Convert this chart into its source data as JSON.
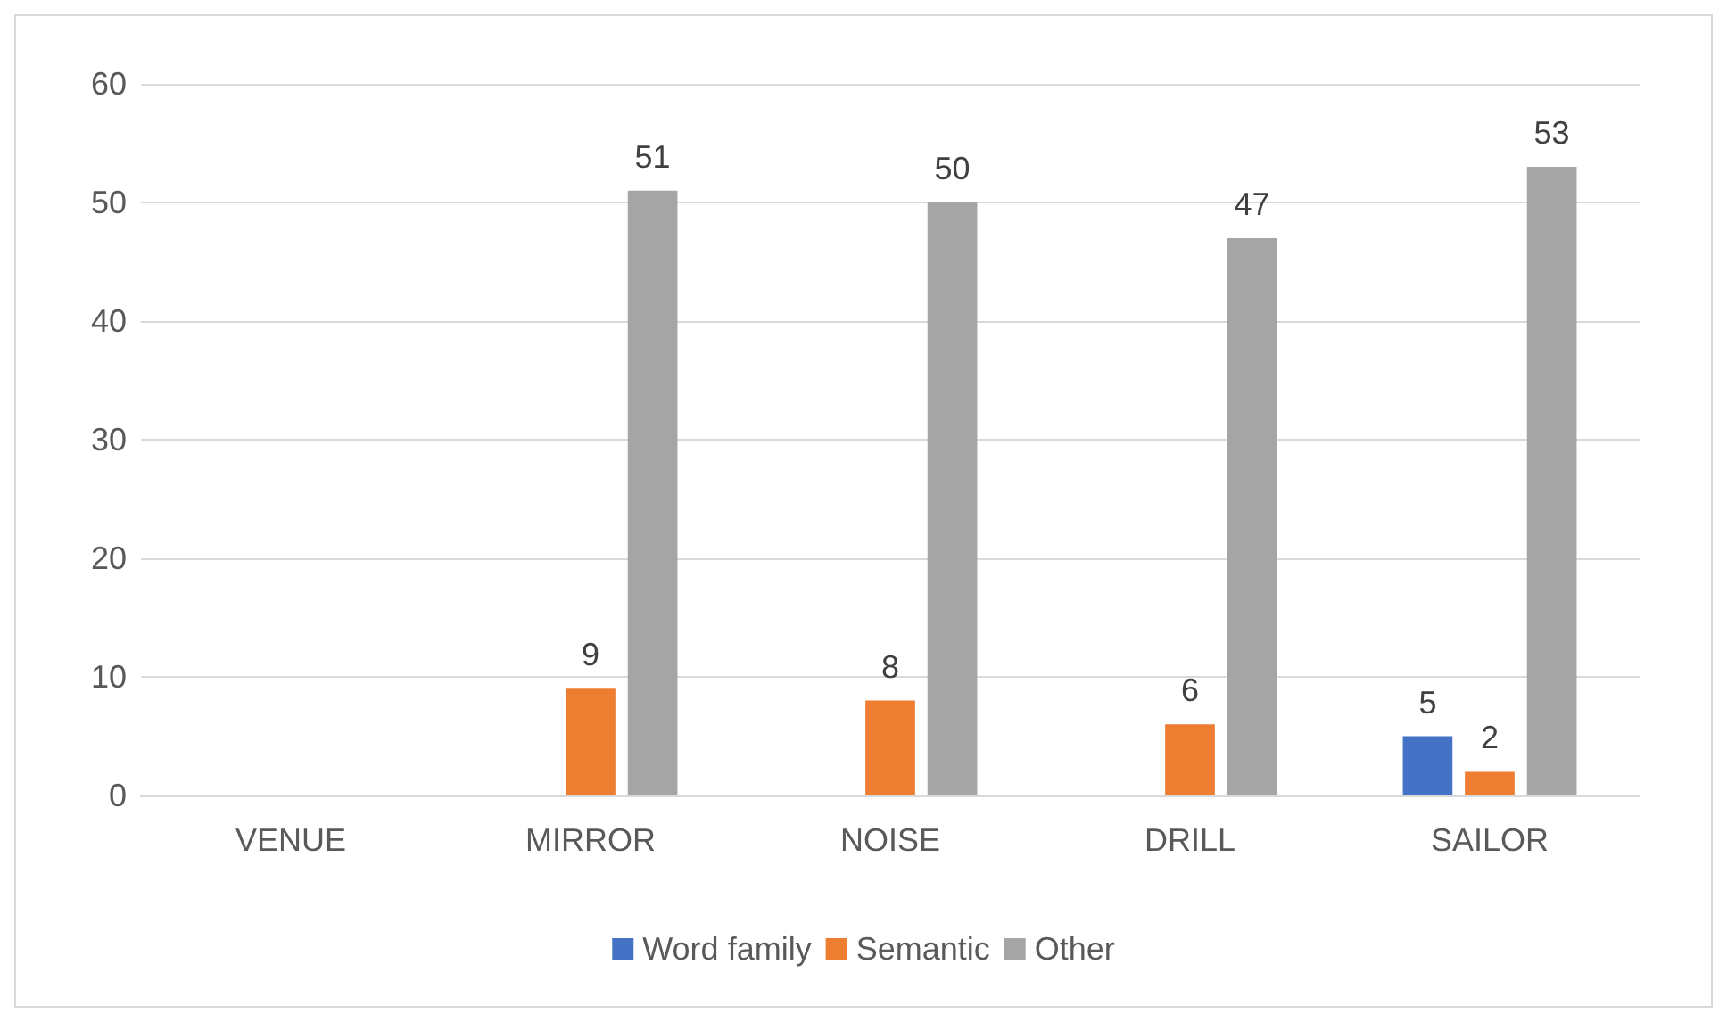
{
  "chart_data": {
    "type": "bar",
    "categories": [
      "VENUE",
      "MIRROR",
      "NOISE",
      "DRILL",
      "SAILOR"
    ],
    "series": [
      {
        "name": "Word family",
        "color": "#4472c4",
        "values": [
          null,
          null,
          null,
          null,
          5
        ]
      },
      {
        "name": "Semantic",
        "color": "#ed7d31",
        "values": [
          null,
          9,
          8,
          6,
          2
        ]
      },
      {
        "name": "Other",
        "color": "#a5a5a5",
        "values": [
          null,
          51,
          50,
          47,
          53
        ]
      }
    ],
    "ylim": [
      0,
      60
    ],
    "yticks": [
      0,
      10,
      20,
      30,
      40,
      50,
      60
    ],
    "grid": "y",
    "legend": "bottom",
    "data_labels": true
  }
}
